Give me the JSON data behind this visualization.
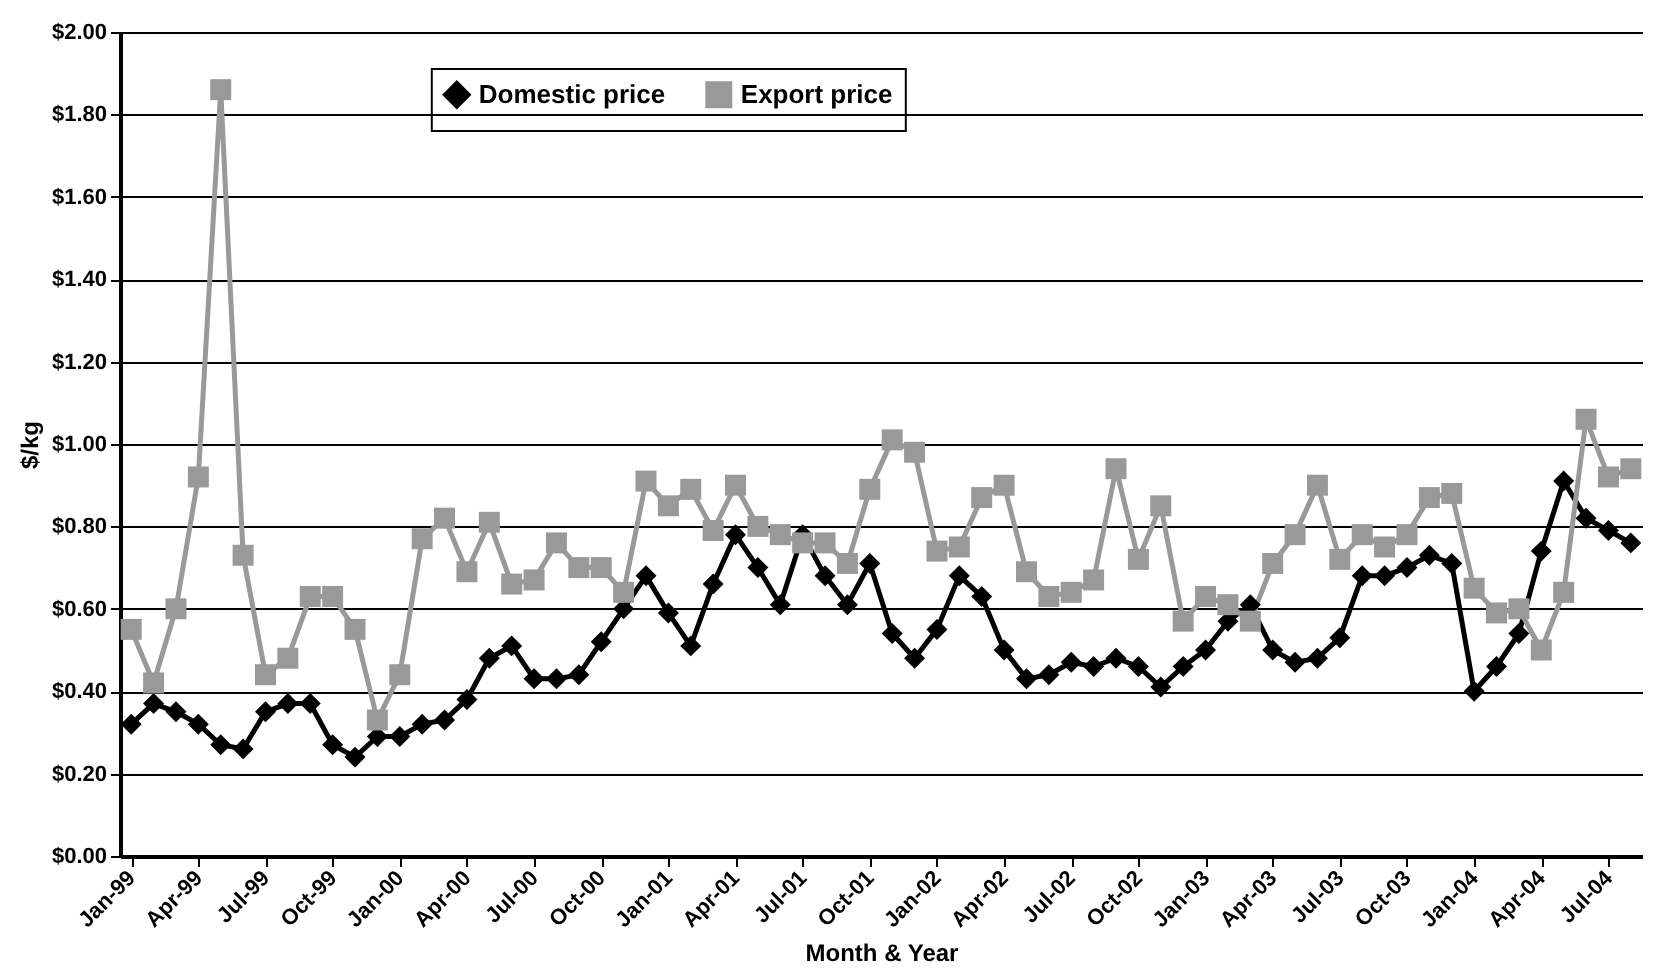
{
  "chart_data": {
    "type": "line",
    "xlabel": "Month & Year",
    "ylabel": "$/kg",
    "categories": [
      "Jan-99",
      null,
      null,
      "Apr-99",
      null,
      null,
      "Jul-99",
      null,
      null,
      "Oct-99",
      null,
      null,
      "Jan-00",
      null,
      null,
      "Apr-00",
      null,
      null,
      "Jul-00",
      null,
      null,
      "Oct-00",
      null,
      null,
      "Jan-01",
      null,
      null,
      "Apr-01",
      null,
      null,
      "Jul-01",
      null,
      null,
      "Oct-01",
      null,
      null,
      "Jan-02",
      null,
      null,
      "Apr-02",
      null,
      null,
      "Jul-02",
      null,
      null,
      "Oct-02",
      null,
      null,
      "Jan-03",
      null,
      null,
      "Apr-03",
      null,
      null,
      "Jul-03",
      null,
      null,
      "Oct-03",
      null,
      null,
      "Jan-04",
      null,
      null,
      "Apr-04",
      null,
      null,
      "Jul-04",
      null
    ],
    "series": [
      {
        "name": "Domestic price",
        "color": "#000000",
        "marker": "diamond",
        "values": [
          0.32,
          0.37,
          0.35,
          0.32,
          0.27,
          0.26,
          0.35,
          0.37,
          0.37,
          0.27,
          0.24,
          0.29,
          0.29,
          0.32,
          0.33,
          0.38,
          0.48,
          0.51,
          0.43,
          0.43,
          0.44,
          0.52,
          0.6,
          0.68,
          0.59,
          0.51,
          0.66,
          0.78,
          0.7,
          0.61,
          0.78,
          0.68,
          0.61,
          0.71,
          0.54,
          0.48,
          0.55,
          0.68,
          0.63,
          0.5,
          0.43,
          0.44,
          0.47,
          0.46,
          0.48,
          0.46,
          0.41,
          0.46,
          0.5,
          0.57,
          0.61,
          0.5,
          0.47,
          0.48,
          0.53,
          0.68,
          0.68,
          0.7,
          0.73,
          0.71,
          0.4,
          0.46,
          0.54,
          0.74,
          0.91,
          0.82,
          0.79,
          0.76
        ]
      },
      {
        "name": "Export price",
        "color": "#999999",
        "marker": "square",
        "values": [
          0.55,
          0.42,
          0.6,
          0.92,
          1.86,
          0.73,
          0.44,
          0.48,
          0.63,
          0.63,
          0.55,
          0.33,
          0.44,
          0.77,
          0.82,
          0.69,
          0.81,
          0.66,
          0.67,
          0.76,
          0.7,
          0.7,
          0.64,
          0.91,
          0.85,
          0.89,
          0.79,
          0.9,
          0.8,
          0.78,
          0.76,
          0.76,
          0.71,
          0.89,
          1.01,
          0.98,
          0.74,
          0.75,
          0.87,
          0.9,
          0.69,
          0.63,
          0.64,
          0.67,
          0.94,
          0.72,
          0.85,
          0.57,
          0.63,
          0.61,
          0.57,
          0.71,
          0.78,
          0.9,
          0.72,
          0.78,
          0.75,
          0.78,
          0.87,
          0.88,
          0.65,
          0.59,
          0.6,
          0.5,
          0.64,
          1.06,
          0.92,
          0.94
        ]
      }
    ],
    "ylim": [
      0,
      2
    ],
    "yticks": [
      {
        "value": 0,
        "label": "$0.00"
      },
      {
        "value": 0.2,
        "label": "$0.20"
      },
      {
        "value": 0.4,
        "label": "$0.40"
      },
      {
        "value": 0.6,
        "label": "$0.60"
      },
      {
        "value": 0.8,
        "label": "$0.80"
      },
      {
        "value": 1,
        "label": "$1.00"
      },
      {
        "value": 1.2,
        "label": "$1.20"
      },
      {
        "value": 1.4,
        "label": "$1.40"
      },
      {
        "value": 1.6,
        "label": "$1.60"
      },
      {
        "value": 1.8,
        "label": "$1.80"
      },
      {
        "value": 2,
        "label": "$2.00"
      }
    ],
    "grid": "y",
    "legend": "top"
  }
}
